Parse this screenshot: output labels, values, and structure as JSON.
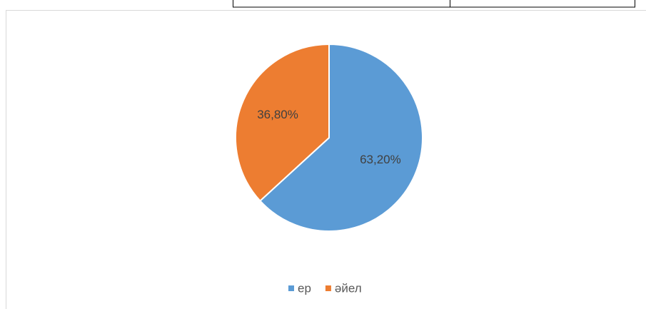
{
  "chart_data": {
    "type": "pie",
    "categories": [
      "ер",
      "әйел"
    ],
    "values": [
      63.2,
      36.8
    ],
    "value_labels": [
      "63,20%",
      "36,80%"
    ],
    "colors": [
      "#5b9bd5",
      "#ed7d31"
    ],
    "legend": "bottom"
  }
}
